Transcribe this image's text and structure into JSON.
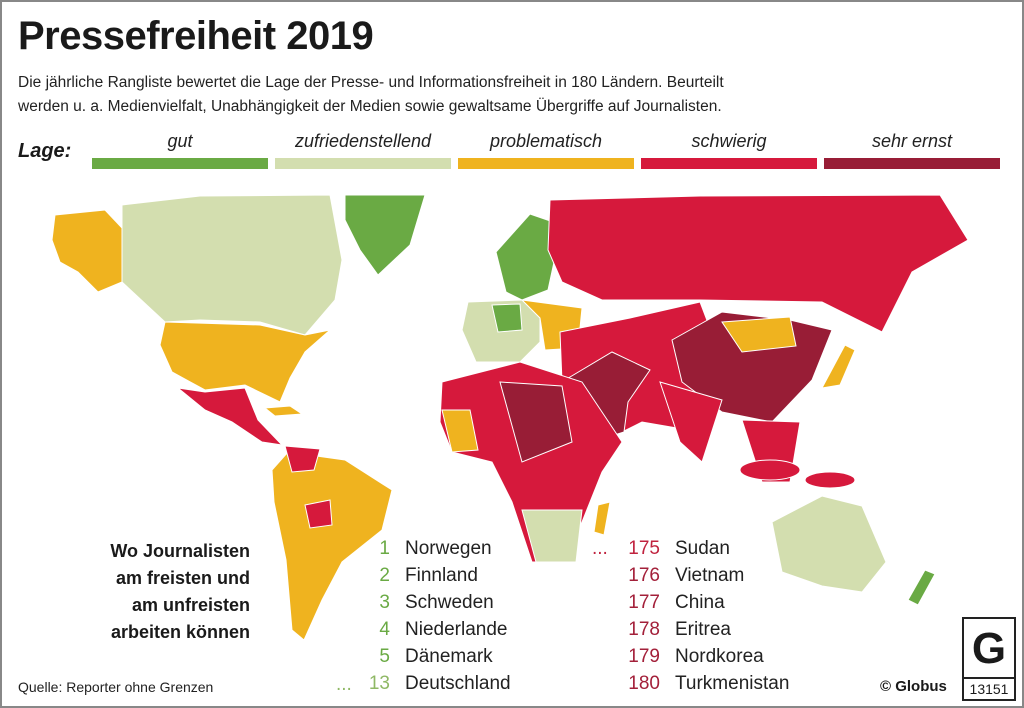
{
  "title": "Pressefreiheit 2019",
  "description": [
    "Die jährliche Rangliste bewertet die Lage der Presse- und Informationsfreiheit in 180 Ländern. Beurteilt",
    "werden u. a. Medienvielfalt, Unabhängigkeit der Medien sowie gewaltsame Übergriffe auf Journalisten."
  ],
  "legend": {
    "label": "Lage:",
    "categories": [
      {
        "label": "gut",
        "color": "#6aaa44"
      },
      {
        "label": "zufriedenstellend",
        "color": "#d3deaf"
      },
      {
        "label": "problematisch",
        "color": "#efb31f"
      },
      {
        "label": "schwierig",
        "color": "#d6193c"
      },
      {
        "label": "sehr ernst",
        "color": "#981d36"
      }
    ]
  },
  "ranking": {
    "intro": [
      "Wo Journalisten",
      "am freisten und",
      "am unfreisten",
      "arbeiten können"
    ],
    "ellipsis": "...",
    "freest": [
      {
        "rank": "1",
        "country": "Norwegen",
        "color": "#6aaa44"
      },
      {
        "rank": "2",
        "country": "Finnland",
        "color": "#6aaa44"
      },
      {
        "rank": "3",
        "country": "Schweden",
        "color": "#6aaa44"
      },
      {
        "rank": "4",
        "country": "Niederlande",
        "color": "#6aaa44"
      },
      {
        "rank": "5",
        "country": "Dänemark",
        "color": "#6aaa44"
      },
      {
        "rank": "13",
        "country": "Deutschland",
        "color": "#8fb865"
      }
    ],
    "least_free": [
      {
        "rank": "175",
        "country": "Sudan",
        "color": "#c0233f"
      },
      {
        "rank": "176",
        "country": "Vietnam",
        "color": "#a3203a"
      },
      {
        "rank": "177",
        "country": "China",
        "color": "#a3203a"
      },
      {
        "rank": "178",
        "country": "Eritrea",
        "color": "#a3203a"
      },
      {
        "rank": "179",
        "country": "Nordkorea",
        "color": "#a3203a"
      },
      {
        "rank": "180",
        "country": "Turkmenistan",
        "color": "#a3203a"
      }
    ]
  },
  "footer": {
    "source": "Quelle: Reporter ohne Grenzen",
    "copyright": "© Globus",
    "logo_letter": "G",
    "graphic_number": "13151"
  }
}
